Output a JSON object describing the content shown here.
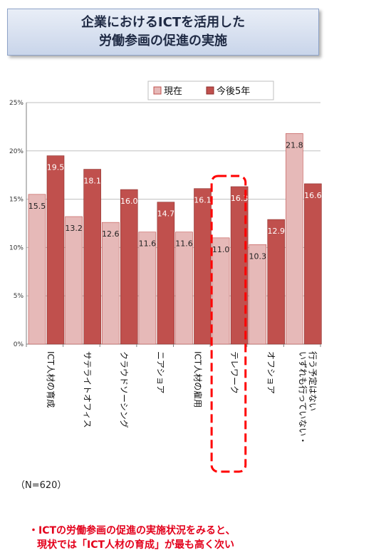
{
  "title": {
    "line1": "企業におけるICTを活用した",
    "line2": "労働参画の促進の実施"
  },
  "sample_note": "（N=620）",
  "bottom_note": {
    "line1": "・ICTの労働参画の促進の実施状況をみると、",
    "line2": "現状では「ICT人材の育成」が最も高く次い"
  },
  "colors": {
    "current": "#e6b9b8",
    "future": "#c0504d",
    "highlight": "#ff0000"
  },
  "chart_data": {
    "type": "bar",
    "categories": [
      "ICT人材の育成",
      "サテライトオフィス",
      "クラウドソーシング",
      "ニアショア",
      "ICT人材の雇用",
      "テレワーク",
      "オフショア",
      "いずれも行っていない・\n行う予定はない"
    ],
    "series": [
      {
        "name": "現在",
        "values": [
          15.5,
          13.2,
          12.6,
          11.6,
          11.6,
          11.0,
          10.3,
          21.8
        ]
      },
      {
        "name": "今後5年",
        "values": [
          19.5,
          18.1,
          16.0,
          14.7,
          16.1,
          16.3,
          12.9,
          16.6
        ]
      }
    ],
    "ylim": [
      0,
      25
    ],
    "yticks": [
      "0%",
      "5%",
      "10%",
      "15%",
      "20%",
      "25%"
    ],
    "legend": "top",
    "highlighted_category": "テレワーク",
    "grid": true
  }
}
